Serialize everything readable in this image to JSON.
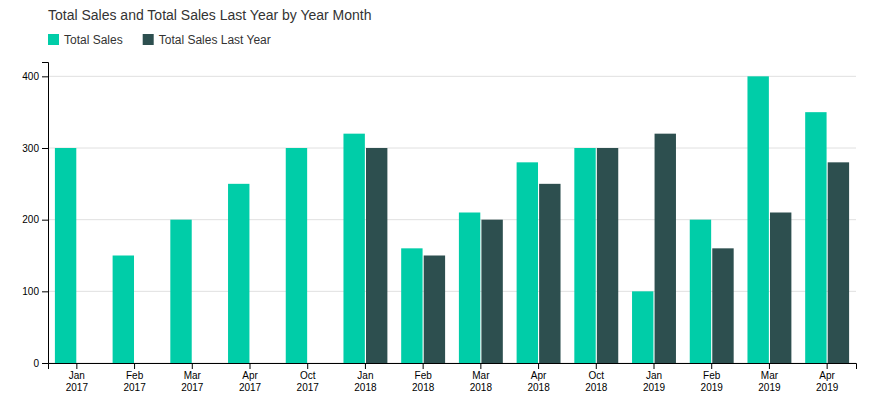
{
  "chart_data": {
    "type": "bar",
    "title": "Total Sales and Total Sales Last Year by Year Month",
    "categories": [
      "Jan\n2017",
      "Feb\n2017",
      "Mar\n2017",
      "Apr\n2017",
      "Oct\n2017",
      "Jan\n2018",
      "Feb\n2018",
      "Mar\n2018",
      "Apr\n2018",
      "Oct\n2018",
      "Jan\n2019",
      "Feb\n2019",
      "Mar\n2019",
      "Apr\n2019"
    ],
    "series": [
      {
        "name": "Total Sales",
        "color": "#00CDA8",
        "values": [
          300,
          150,
          200,
          250,
          300,
          320,
          160,
          210,
          280,
          300,
          100,
          200,
          400,
          350
        ]
      },
      {
        "name": "Total Sales Last Year",
        "color": "#2D4F4F",
        "values": [
          null,
          null,
          null,
          null,
          null,
          300,
          150,
          200,
          250,
          300,
          320,
          160,
          210,
          280
        ]
      }
    ],
    "ylim": [
      0,
      420
    ],
    "yticks": [
      0,
      100,
      200,
      300,
      400
    ],
    "grid": true,
    "legend": "top-left"
  }
}
